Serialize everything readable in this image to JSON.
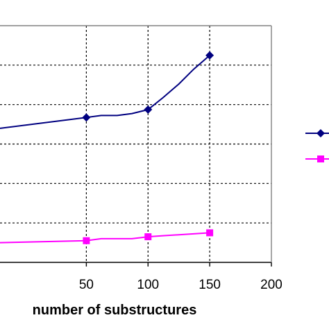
{
  "chart_data": {
    "type": "line",
    "xlabel": "number of substructures",
    "ylabel": "",
    "xlim": [
      -20,
      200
    ],
    "x_ticks": [
      "50",
      "100",
      "150",
      "200"
    ],
    "grid": true,
    "legend": "right",
    "series": [
      {
        "color": "#000080",
        "marker": "diamond",
        "x": [
          -20,
          50,
          62,
          75,
          87,
          100,
          112,
          125,
          137,
          150
        ],
        "y": [
          6.8,
          7.35,
          7.45,
          7.45,
          7.55,
          7.75,
          8.35,
          9.05,
          9.8,
          10.5
        ]
      },
      {
        "color": "#ff00ff",
        "marker": "square",
        "x": [
          -20,
          50,
          62,
          75,
          87,
          100,
          112,
          125,
          137,
          150
        ],
        "y": [
          1.0,
          1.1,
          1.2,
          1.2,
          1.2,
          1.3,
          1.35,
          1.4,
          1.45,
          1.5
        ]
      }
    ]
  }
}
